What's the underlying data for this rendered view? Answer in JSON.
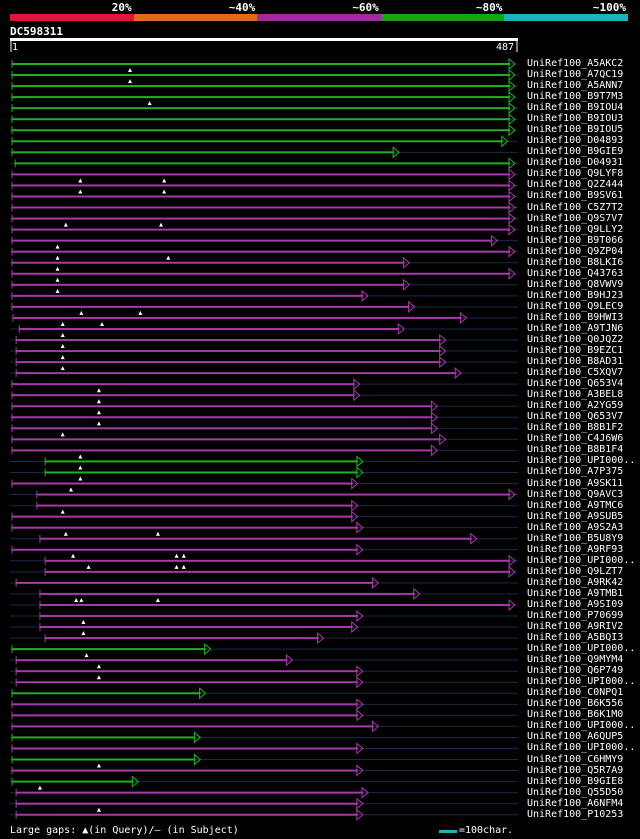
{
  "query_id": "DC598311",
  "ruler": {
    "start": "1",
    "end": "487"
  },
  "identity_bands": [
    {
      "label": "20%",
      "color": "#e0143c"
    },
    {
      "label": "~40%",
      "color": "#e06b1e"
    },
    {
      "label": "~60%",
      "color": "#a12a9f"
    },
    {
      "label": "~80%",
      "color": "#1aa31a"
    },
    {
      "label": "~100%",
      "color": "#1ab3c0"
    }
  ],
  "colors": {
    "green": "#22b022",
    "magenta": "#a63aa8",
    "ruler": "#ffffff"
  },
  "footer": {
    "text": "Large gaps: ▲(in Query)/– (in Subject)",
    "scale_text": "=100char.",
    "scale_color": "#1ab3c0"
  },
  "hits": [
    {
      "id": "UniRef100_A5AKC2",
      "color": "green",
      "start": 1,
      "end": 487,
      "marks": []
    },
    {
      "id": "UniRef100_A7QC19",
      "color": "green",
      "start": 1,
      "end": 487,
      "marks": [
        115
      ]
    },
    {
      "id": "UniRef100_A5ANN7",
      "color": "green",
      "start": 1,
      "end": 487,
      "marks": [
        115
      ]
    },
    {
      "id": "UniRef100_B9T7M3",
      "color": "green",
      "start": 1,
      "end": 487,
      "marks": []
    },
    {
      "id": "UniRef100_B9IOU4",
      "color": "green",
      "start": 1,
      "end": 487,
      "marks": [
        134
      ]
    },
    {
      "id": "UniRef100_B9IOU3",
      "color": "green",
      "start": 1,
      "end": 487,
      "marks": []
    },
    {
      "id": "UniRef100_B9IOU5",
      "color": "green",
      "start": 1,
      "end": 487,
      "marks": []
    },
    {
      "id": "UniRef100_D04893",
      "color": "green",
      "start": 1,
      "end": 480,
      "marks": []
    },
    {
      "id": "UniRef100_B9GIE9",
      "color": "green",
      "start": 1,
      "end": 375,
      "marks": []
    },
    {
      "id": "UniRef100_D04931",
      "color": "green",
      "start": 4,
      "end": 487,
      "marks": []
    },
    {
      "id": "UniRef100_Q9LYF8",
      "color": "magenta",
      "start": 1,
      "end": 487,
      "marks": []
    },
    {
      "id": "UniRef100_Q2Z444",
      "color": "magenta",
      "start": 1,
      "end": 487,
      "marks": [
        67,
        148
      ]
    },
    {
      "id": "UniRef100_B9SV61",
      "color": "magenta",
      "start": 1,
      "end": 487,
      "marks": [
        67,
        148
      ]
    },
    {
      "id": "UniRef100_C5Z7T2",
      "color": "magenta",
      "start": 1,
      "end": 487,
      "marks": []
    },
    {
      "id": "UniRef100_Q9S7V7",
      "color": "magenta",
      "start": 1,
      "end": 487,
      "marks": []
    },
    {
      "id": "UniRef100_Q9LLY2",
      "color": "magenta",
      "start": 1,
      "end": 487,
      "marks": [
        53,
        145
      ]
    },
    {
      "id": "UniRef100_B9T066",
      "color": "magenta",
      "start": 1,
      "end": 470,
      "marks": []
    },
    {
      "id": "UniRef100_Q9ZP04",
      "color": "magenta",
      "start": 1,
      "end": 487,
      "marks": [
        45
      ]
    },
    {
      "id": "UniRef100_B8LKI6",
      "color": "magenta",
      "start": 1,
      "end": 385,
      "marks": [
        45,
        152
      ]
    },
    {
      "id": "UniRef100_Q43763",
      "color": "magenta",
      "start": 1,
      "end": 487,
      "marks": [
        45
      ]
    },
    {
      "id": "UniRef100_Q8VWV9",
      "color": "magenta",
      "start": 1,
      "end": 385,
      "marks": [
        45
      ]
    },
    {
      "id": "UniRef100_B9HJ23",
      "color": "magenta",
      "start": 1,
      "end": 345,
      "marks": [
        45
      ]
    },
    {
      "id": "UniRef100_Q9LEC9",
      "color": "magenta",
      "start": 1,
      "end": 390,
      "marks": []
    },
    {
      "id": "UniRef100_B9HWI3",
      "color": "magenta",
      "start": 2,
      "end": 440,
      "marks": [
        68,
        125
      ]
    },
    {
      "id": "UniRef100_A9TJN6",
      "color": "magenta",
      "start": 8,
      "end": 380,
      "marks": [
        50,
        88
      ]
    },
    {
      "id": "UniRef100_Q0JQZ2",
      "color": "magenta",
      "start": 5,
      "end": 420,
      "marks": [
        50
      ]
    },
    {
      "id": "UniRef100_B9EZC1",
      "color": "magenta",
      "start": 5,
      "end": 420,
      "marks": [
        50
      ]
    },
    {
      "id": "UniRef100_B8AD31",
      "color": "magenta",
      "start": 5,
      "end": 420,
      "marks": [
        50
      ]
    },
    {
      "id": "UniRef100_C5XQV7",
      "color": "magenta",
      "start": 5,
      "end": 435,
      "marks": [
        50
      ]
    },
    {
      "id": "UniRef100_Q653V4",
      "color": "magenta",
      "start": 1,
      "end": 337,
      "marks": []
    },
    {
      "id": "UniRef100_A3BEL8",
      "color": "magenta",
      "start": 1,
      "end": 337,
      "marks": [
        85
      ]
    },
    {
      "id": "UniRef100_A2YG59",
      "color": "magenta",
      "start": 1,
      "end": 412,
      "marks": [
        85
      ]
    },
    {
      "id": "UniRef100_Q653V7",
      "color": "magenta",
      "start": 1,
      "end": 412,
      "marks": [
        85
      ]
    },
    {
      "id": "UniRef100_B8B1F2",
      "color": "magenta",
      "start": 1,
      "end": 412,
      "marks": [
        85
      ]
    },
    {
      "id": "UniRef100_C4J6W6",
      "color": "magenta",
      "start": 1,
      "end": 420,
      "marks": [
        50
      ]
    },
    {
      "id": "UniRef100_B8B1F4",
      "color": "magenta",
      "start": 1,
      "end": 412,
      "marks": []
    },
    {
      "id": "UniRef100_UPI000..a",
      "color": "green",
      "start": 33,
      "end": 340,
      "marks": [
        67
      ]
    },
    {
      "id": "UniRef100_A7P375",
      "color": "green",
      "start": 33,
      "end": 340,
      "marks": [
        67
      ]
    },
    {
      "id": "UniRef100_A9SK11",
      "color": "magenta",
      "start": 1,
      "end": 335,
      "marks": [
        67
      ]
    },
    {
      "id": "UniRef100_Q9AVC3",
      "color": "magenta",
      "start": 25,
      "end": 487,
      "marks": [
        58
      ]
    },
    {
      "id": "UniRef100_A9TMC6",
      "color": "magenta",
      "start": 25,
      "end": 335,
      "marks": []
    },
    {
      "id": "UniRef100_A9SUB5",
      "color": "magenta",
      "start": 1,
      "end": 335,
      "marks": [
        50
      ]
    },
    {
      "id": "UniRef100_A9S2A3",
      "color": "magenta",
      "start": 1,
      "end": 340,
      "marks": []
    },
    {
      "id": "UniRef100_B5U8Y9",
      "color": "magenta",
      "start": 28,
      "end": 450,
      "marks": [
        53,
        142
      ]
    },
    {
      "id": "UniRef100_A9RF93",
      "color": "magenta",
      "start": 1,
      "end": 340,
      "marks": []
    },
    {
      "id": "UniRef100_UPI000..b",
      "color": "magenta",
      "start": 33,
      "end": 487,
      "marks": [
        60,
        160,
        167
      ]
    },
    {
      "id": "UniRef100_Q9LZT7",
      "color": "magenta",
      "start": 33,
      "end": 487,
      "marks": [
        75,
        160,
        167
      ]
    },
    {
      "id": "UniRef100_A9RK42",
      "color": "magenta",
      "start": 5,
      "end": 355,
      "marks": []
    },
    {
      "id": "UniRef100_A9TMB1",
      "color": "magenta",
      "start": 28,
      "end": 395,
      "marks": []
    },
    {
      "id": "UniRef100_A9SI09",
      "color": "magenta",
      "start": 28,
      "end": 487,
      "marks": [
        63,
        68,
        142
      ]
    },
    {
      "id": "UniRef100_P70699",
      "color": "magenta",
      "start": 28,
      "end": 340,
      "marks": []
    },
    {
      "id": "UniRef100_A9RIV2",
      "color": "magenta",
      "start": 28,
      "end": 335,
      "marks": [
        70
      ]
    },
    {
      "id": "UniRef100_A5BQI3",
      "color": "magenta",
      "start": 33,
      "end": 302,
      "marks": [
        70
      ]
    },
    {
      "id": "UniRef100_UPI000..c",
      "color": "green",
      "start": 1,
      "end": 193,
      "marks": []
    },
    {
      "id": "UniRef100_Q9MYM4",
      "color": "magenta",
      "start": 5,
      "end": 272,
      "marks": [
        73
      ]
    },
    {
      "id": "UniRef100_Q6P749",
      "color": "magenta",
      "start": 5,
      "end": 340,
      "marks": [
        85
      ]
    },
    {
      "id": "UniRef100_UPI000..d",
      "color": "magenta",
      "start": 5,
      "end": 340,
      "marks": [
        85
      ]
    },
    {
      "id": "UniRef100_C0NPQ1",
      "color": "green",
      "start": 1,
      "end": 188,
      "marks": []
    },
    {
      "id": "UniRef100_B6K556",
      "color": "magenta",
      "start": 1,
      "end": 340,
      "marks": []
    },
    {
      "id": "UniRef100_B6K1M0",
      "color": "magenta",
      "start": 1,
      "end": 340,
      "marks": []
    },
    {
      "id": "UniRef100_UPI000..e",
      "color": "magenta",
      "start": 1,
      "end": 355,
      "marks": []
    },
    {
      "id": "UniRef100_A6QUP5",
      "color": "green",
      "start": 1,
      "end": 183,
      "marks": []
    },
    {
      "id": "UniRef100_UPI000..f",
      "color": "magenta",
      "start": 1,
      "end": 340,
      "marks": []
    },
    {
      "id": "UniRef100_C6HMY9",
      "color": "green",
      "start": 1,
      "end": 183,
      "marks": []
    },
    {
      "id": "UniRef100_Q5R7A9",
      "color": "magenta",
      "start": 1,
      "end": 340,
      "marks": [
        85
      ]
    },
    {
      "id": "UniRef100_B9GIE8",
      "color": "green",
      "start": 1,
      "end": 123,
      "marks": []
    },
    {
      "id": "UniRef100_Q55D50",
      "color": "magenta",
      "start": 5,
      "end": 345,
      "marks": [
        28
      ]
    },
    {
      "id": "UniRef100_A6NFM4",
      "color": "magenta",
      "start": 5,
      "end": 340,
      "marks": []
    },
    {
      "id": "UniRef100_P10253",
      "color": "magenta",
      "start": 5,
      "end": 340,
      "marks": [
        85
      ]
    }
  ]
}
